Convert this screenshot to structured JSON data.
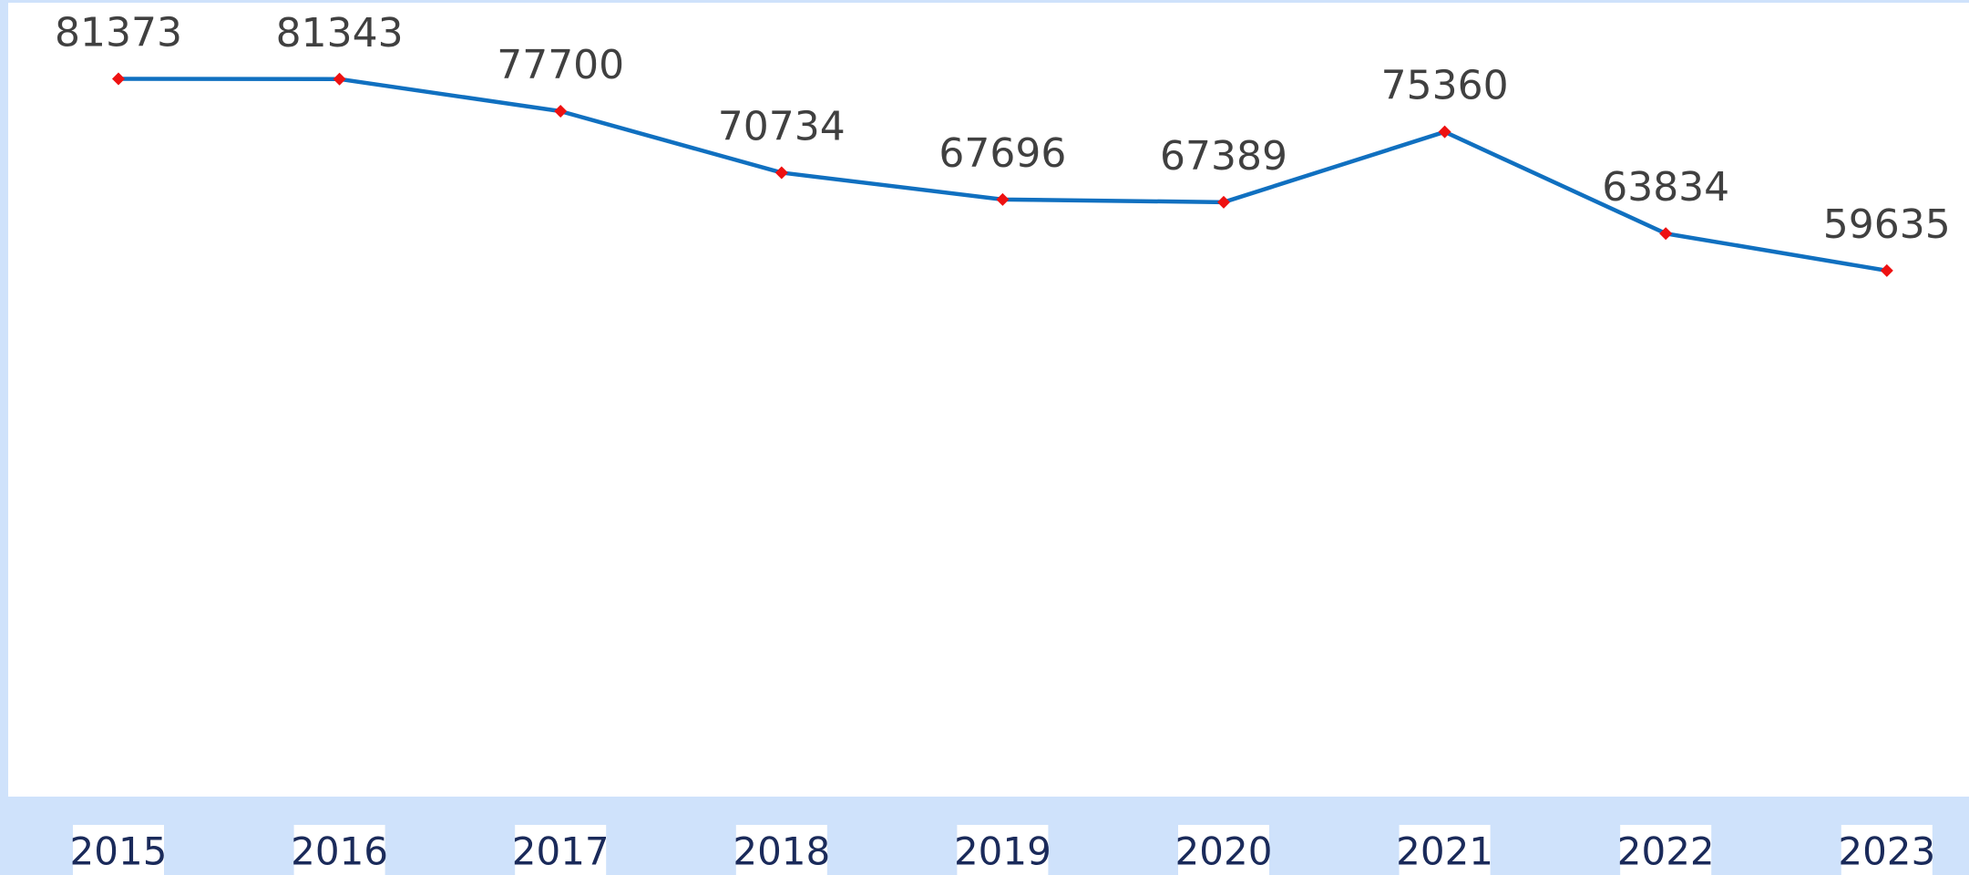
{
  "chart_data": {
    "type": "line",
    "categories": [
      "2015",
      "2016",
      "2017",
      "2018",
      "2019",
      "2020",
      "2021",
      "2022",
      "2023"
    ],
    "series": [
      {
        "color": "#1070c0",
        "marker_color": "#ee1111",
        "values": [
          81373,
          81343,
          77700,
          70734,
          67696,
          67389,
          75360,
          63834,
          59635
        ]
      }
    ],
    "ylim": [
      0,
      90000
    ],
    "grid": false
  }
}
